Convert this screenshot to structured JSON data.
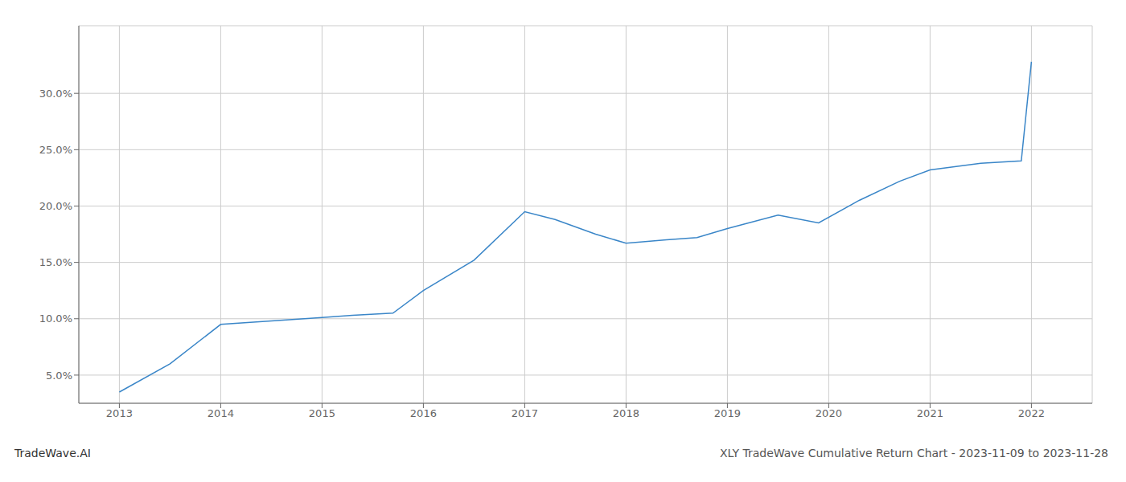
{
  "chart_data": {
    "type": "line",
    "x": [
      2013.0,
      2013.5,
      2014.0,
      2014.5,
      2015.0,
      2015.3,
      2015.7,
      2016.0,
      2016.5,
      2017.0,
      2017.3,
      2017.7,
      2018.0,
      2018.4,
      2018.7,
      2019.0,
      2019.5,
      2019.9,
      2020.3,
      2020.7,
      2021.0,
      2021.5,
      2021.9,
      2022.0
    ],
    "values": [
      3.5,
      6.0,
      9.5,
      9.8,
      10.1,
      10.3,
      10.5,
      12.5,
      15.2,
      19.5,
      18.8,
      17.5,
      16.7,
      17.0,
      17.2,
      18.0,
      19.2,
      18.5,
      20.5,
      22.2,
      23.2,
      23.8,
      24.0,
      32.8
    ],
    "color": "#3a86c8",
    "grid": true,
    "xlim": [
      2012.6,
      2022.6
    ],
    "xticks": [
      2013,
      2014,
      2015,
      2016,
      2017,
      2018,
      2019,
      2020,
      2021,
      2022
    ],
    "ylim": [
      2.5,
      36.0
    ],
    "yticks": [
      {
        "value": 5.0,
        "label": "5.0%"
      },
      {
        "value": 10.0,
        "label": "10.0%"
      },
      {
        "value": 15.0,
        "label": "15.0%"
      },
      {
        "value": 20.0,
        "label": "20.0%"
      },
      {
        "value": 25.0,
        "label": "25.0%"
      },
      {
        "value": 30.0,
        "label": "30.0%"
      }
    ],
    "annotations": [
      "TradeWave.AI",
      "XLY TradeWave Cumulative Return Chart - 2023-11-09 to 2023-11-28"
    ]
  }
}
